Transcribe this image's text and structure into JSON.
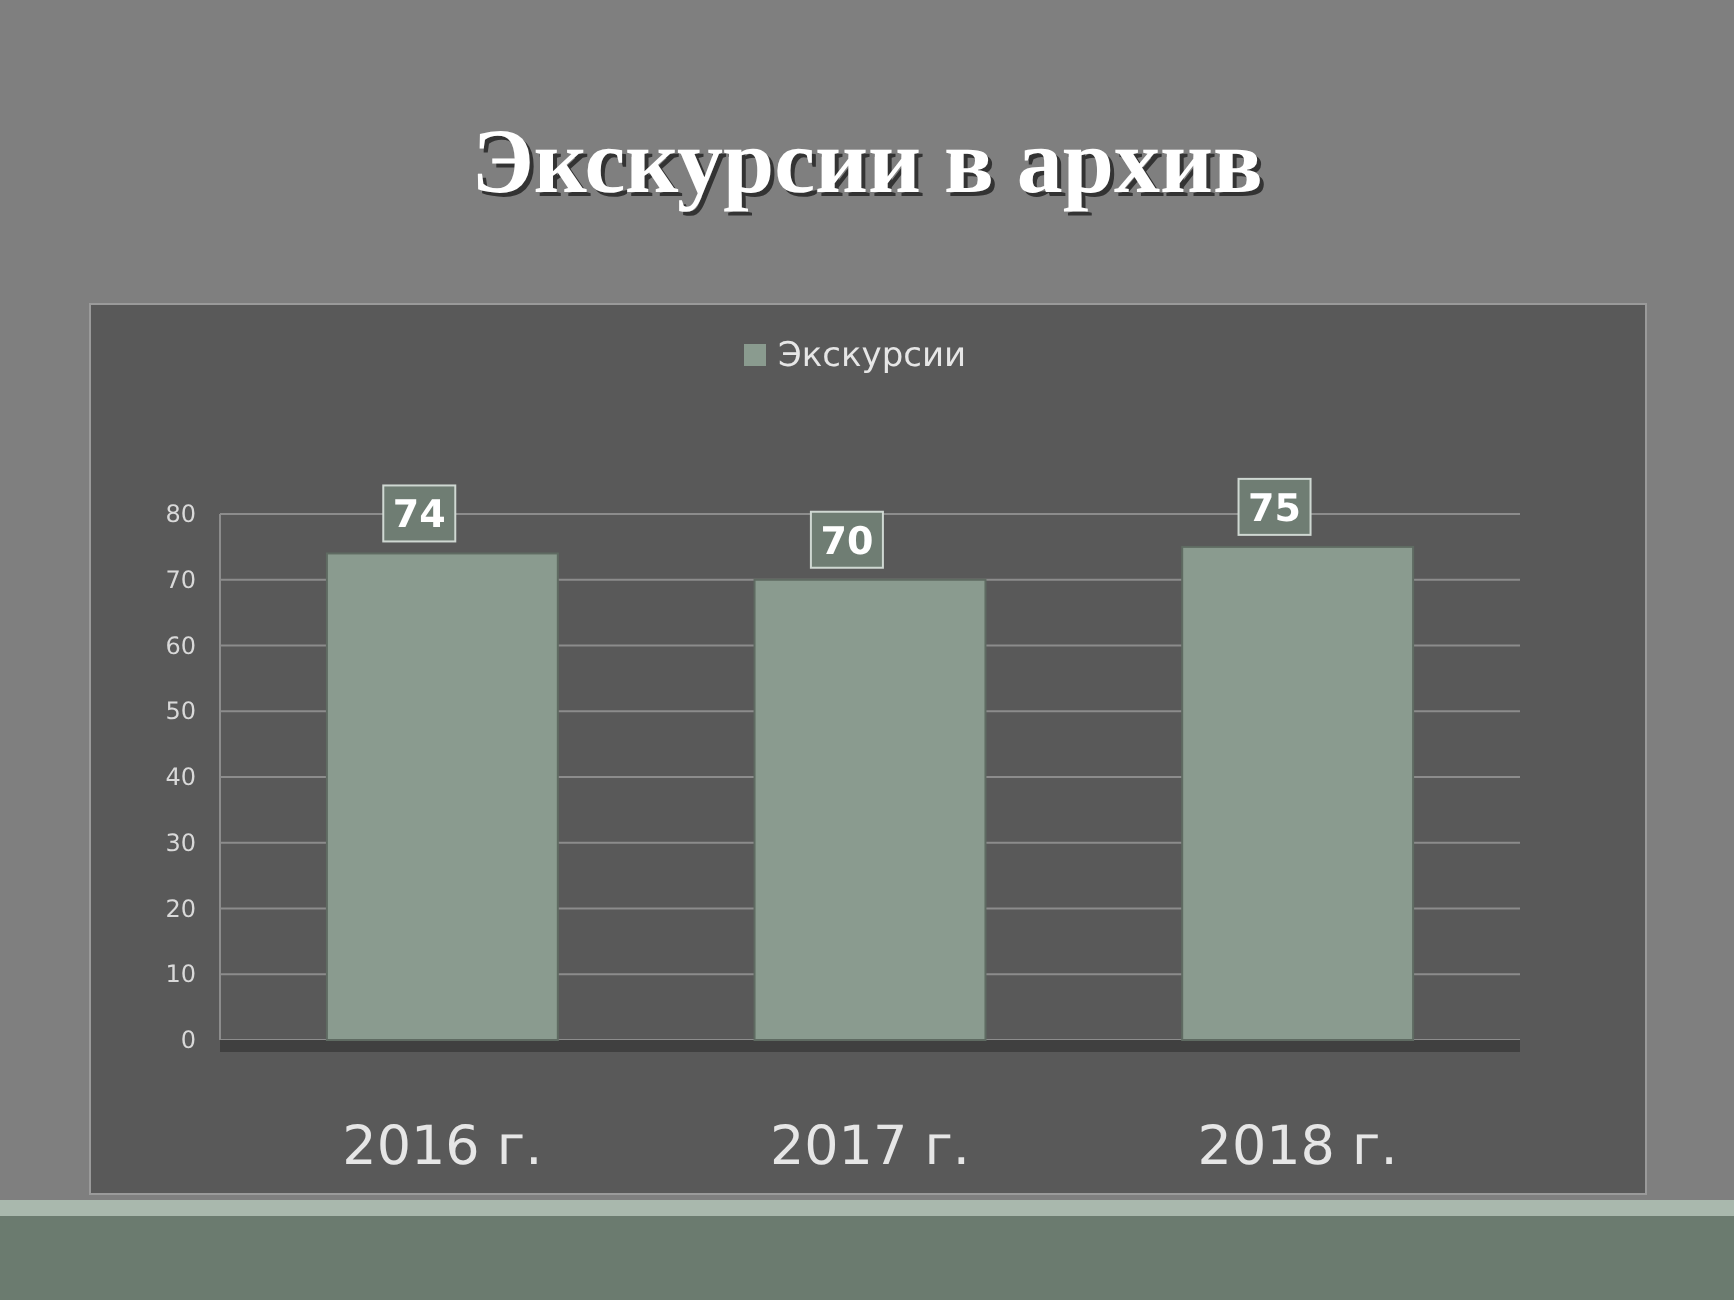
{
  "chart_data": {
    "type": "bar",
    "title": "Экскурсии в архив",
    "categories": [
      "2016 г.",
      "2017 г.",
      "2018 г."
    ],
    "series": [
      {
        "name": "Экскурсии",
        "color": "#8a9b8f",
        "values": [
          74,
          70,
          75
        ]
      }
    ],
    "ylim": [
      0,
      80
    ],
    "yticks": [
      0,
      10,
      20,
      30,
      40,
      50,
      60,
      70,
      80
    ],
    "grid": "y",
    "legend": "top",
    "data_labels": true
  }
}
